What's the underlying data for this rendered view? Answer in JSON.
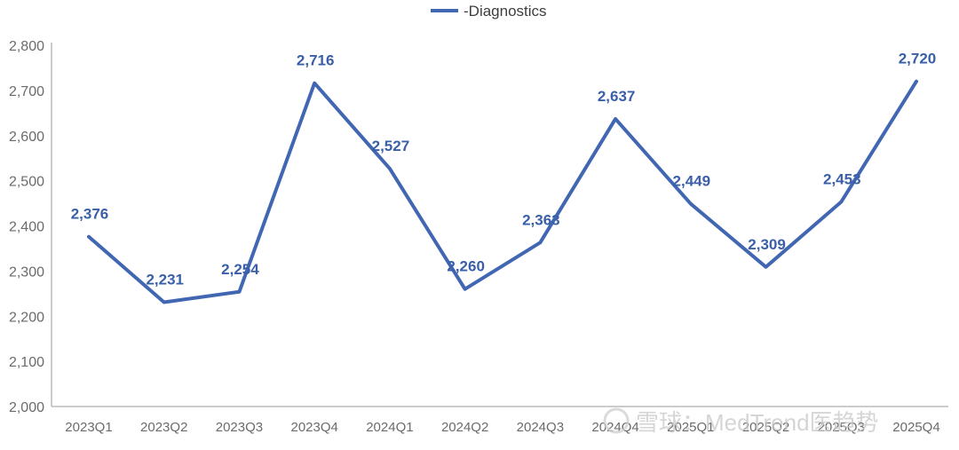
{
  "chart_data": {
    "type": "line",
    "categories": [
      "2023Q1",
      "2023Q2",
      "2023Q3",
      "2023Q4",
      "2024Q1",
      "2024Q2",
      "2024Q3",
      "2024Q4",
      "2025Q1",
      "2025Q2",
      "2025Q3",
      "2025Q4"
    ],
    "series": [
      {
        "name": "-Diagnostics",
        "values": [
          2376,
          2231,
          2254,
          2716,
          2527,
          2260,
          2363,
          2637,
          2449,
          2309,
          2453,
          2720
        ],
        "labels": [
          "2,376",
          "2,231",
          "2,254",
          "2,716",
          "2,527",
          "2,260",
          "2,363",
          "2,637",
          "2,449",
          "2,309",
          "2,453",
          "2,720"
        ]
      }
    ],
    "ylim": [
      2000,
      2800
    ],
    "yticks": [
      2000,
      2100,
      2200,
      2300,
      2400,
      2500,
      2600,
      2700,
      2800
    ],
    "ytick_labels": [
      "2,000",
      "2,100",
      "2,200",
      "2,300",
      "2,400",
      "2,500",
      "2,600",
      "2,700",
      "2,800"
    ],
    "title": "",
    "xlabel": "",
    "ylabel": "",
    "legend_position": "top-center",
    "grid": false,
    "drop_lines": true,
    "line_color": "#4267b2",
    "label_color": "#3a5fa8"
  },
  "watermark": {
    "text": "雪球：MedTrend医趋势"
  }
}
